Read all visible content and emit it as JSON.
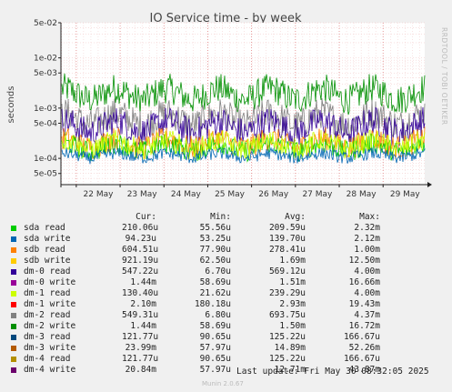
{
  "chart_data": {
    "type": "line",
    "title": "IO Service time - by week",
    "ylabel": "seconds",
    "yscale": "log",
    "ylim": [
      3e-05,
      0.05
    ],
    "yticks": [
      {
        "value": 5e-05,
        "label": "5e-05"
      },
      {
        "value": 0.0001,
        "label": "1e-04"
      },
      {
        "value": 0.0005,
        "label": "5e-04"
      },
      {
        "value": 0.001,
        "label": "1e-03"
      },
      {
        "value": 0.005,
        "label": "5e-03"
      },
      {
        "value": 0.01,
        "label": "1e-02"
      },
      {
        "value": 0.05,
        "label": "5e-02"
      }
    ],
    "xticks": [
      "22 May",
      "23 May",
      "24 May",
      "25 May",
      "26 May",
      "27 May",
      "28 May",
      "29 May"
    ],
    "grid": true,
    "side_label": "RRDTOOL / TOBI OETIKER",
    "headers": {
      "cur": "Cur:",
      "min": "Min:",
      "avg": "Avg:",
      "max": "Max:"
    },
    "series": [
      {
        "name": "sda read",
        "color": "#00cc00",
        "cur": "210.06u",
        "min": "55.56u",
        "avg": "209.59u",
        "max": "2.32m"
      },
      {
        "name": "sda write",
        "color": "#0066b3",
        "cur": "94.23u",
        "min": "53.25u",
        "avg": "139.70u",
        "max": "2.12m"
      },
      {
        "name": "sdb read",
        "color": "#ff8000",
        "cur": "604.51u",
        "min": "77.90u",
        "avg": "278.41u",
        "max": "1.00m"
      },
      {
        "name": "sdb write",
        "color": "#ffcc00",
        "cur": "921.19u",
        "min": "62.50u",
        "avg": "1.69m",
        "max": "12.50m"
      },
      {
        "name": "dm-0 read",
        "color": "#330099",
        "cur": "547.22u",
        "min": "6.70u",
        "avg": "569.12u",
        "max": "4.00m"
      },
      {
        "name": "dm-0 write",
        "color": "#990099",
        "cur": "1.44m",
        "min": "58.69u",
        "avg": "1.51m",
        "max": "16.66m"
      },
      {
        "name": "dm-1 read",
        "color": "#ccff00",
        "cur": "130.40u",
        "min": "21.62u",
        "avg": "239.29u",
        "max": "4.00m"
      },
      {
        "name": "dm-1 write",
        "color": "#ff0000",
        "cur": "2.10m",
        "min": "180.18u",
        "avg": "2.93m",
        "max": "19.43m"
      },
      {
        "name": "dm-2 read",
        "color": "#808080",
        "cur": "549.31u",
        "min": "6.80u",
        "avg": "693.75u",
        "max": "4.37m"
      },
      {
        "name": "dm-2 write",
        "color": "#008f00",
        "cur": "1.44m",
        "min": "58.69u",
        "avg": "1.50m",
        "max": "16.72m"
      },
      {
        "name": "dm-3 read",
        "color": "#00487d",
        "cur": "121.77u",
        "min": "90.65u",
        "avg": "125.22u",
        "max": "166.67u"
      },
      {
        "name": "dm-3 write",
        "color": "#b35a00",
        "cur": "23.99m",
        "min": "57.97u",
        "avg": "14.89m",
        "max": "52.26m"
      },
      {
        "name": "dm-4 read",
        "color": "#b38f00",
        "cur": "121.77u",
        "min": "90.65u",
        "avg": "125.22u",
        "max": "166.67u"
      },
      {
        "name": "dm-4 write",
        "color": "#6b006b",
        "cur": "20.84m",
        "min": "57.97u",
        "avg": "12.71m",
        "max": "43.87m"
      }
    ],
    "bands": [
      {
        "name": "dm-2 write",
        "lo": 0.0008,
        "hi": 0.0045
      },
      {
        "name": "dm-2 read",
        "lo": 0.00025,
        "hi": 0.0015
      },
      {
        "name": "dm-0 read",
        "lo": 0.00018,
        "hi": 0.001
      },
      {
        "name": "sdb read",
        "lo": 0.0001,
        "hi": 0.0004
      },
      {
        "name": "sda read",
        "lo": 9e-05,
        "hi": 0.0003
      },
      {
        "name": "dm-1 read",
        "lo": 0.0001,
        "hi": 0.00035
      },
      {
        "name": "sda write",
        "lo": 8e-05,
        "hi": 0.00016
      }
    ]
  },
  "footer": {
    "last_update": "Last update: Fri May 30 08:32:05 2025",
    "munin": "Munin 2.0.67"
  }
}
